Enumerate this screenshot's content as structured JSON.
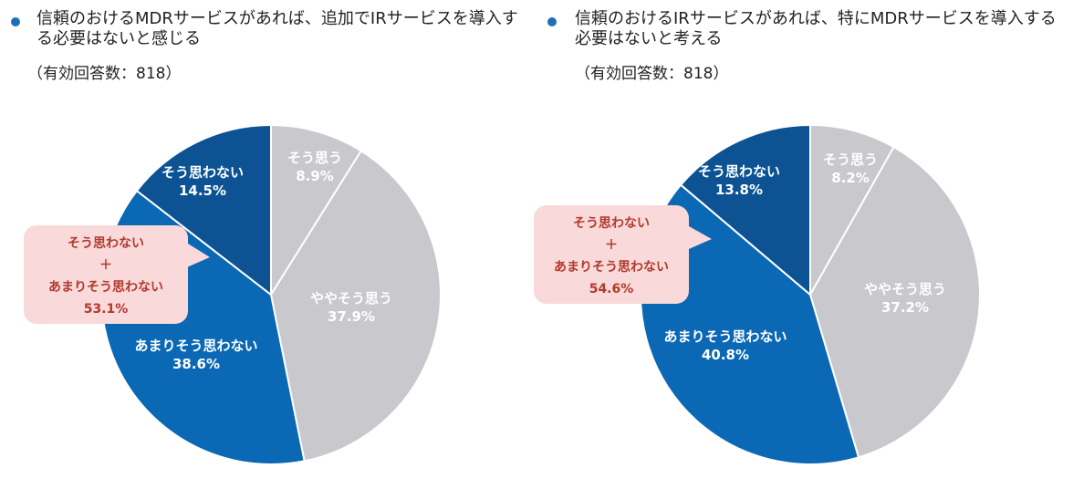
{
  "colors": {
    "bullet": "#1f6fb8",
    "strongly_agree": "#c9c8cd",
    "somewhat_agree": "#c9c8cd",
    "somewhat_disagree": "#0a68b4",
    "strongly_disagree": "#0d5394",
    "callout_fill": "#f9d9d9",
    "callout_text": "#b03a2e",
    "label_light": "#ffffff"
  },
  "chart_data": [
    {
      "type": "pie",
      "title": "信頼のおけるMDRサービスがあれば、追加でIRサービスを導入する必要はないと感じる",
      "title_line1": "信頼のおけるMDRサービスがあれば、追加でIRサービスを導入す",
      "title_line2": "る必要はないと感じる",
      "respondents": "（有効回答数：818）",
      "slices": [
        {
          "label": "そう思う",
          "value": 8.9,
          "display": "8.9%"
        },
        {
          "label": "ややそう思う",
          "value": 37.9,
          "display": "37.9%"
        },
        {
          "label": "あまりそう思わない",
          "value": 38.6,
          "display": "38.6%"
        },
        {
          "label": "そう思わない",
          "value": 14.5,
          "display": "14.5%"
        }
      ],
      "callout": {
        "line1": "そう思わない",
        "line2": "＋",
        "line3": "あまりそう思わない",
        "value_display": "53.1%"
      }
    },
    {
      "type": "pie",
      "title": "信頼のおけるIRサービスがあれば、特にMDRサービスを導入する必要はないと考える",
      "title_line1": "信頼のおけるIRサービスがあれば、特にMDRサービスを導入する",
      "title_line2": "必要はないと考える",
      "respondents": "（有効回答数：818）",
      "slices": [
        {
          "label": "そう思う",
          "value": 8.2,
          "display": "8.2%"
        },
        {
          "label": "ややそう思う",
          "value": 37.2,
          "display": "37.2%"
        },
        {
          "label": "あまりそう思わない",
          "value": 40.8,
          "display": "40.8%"
        },
        {
          "label": "そう思わない",
          "value": 13.8,
          "display": "13.8%"
        }
      ],
      "callout": {
        "line1": "そう思わない",
        "line2": "＋",
        "line3": "あまりそう思わない",
        "value_display": "54.6%"
      }
    }
  ]
}
